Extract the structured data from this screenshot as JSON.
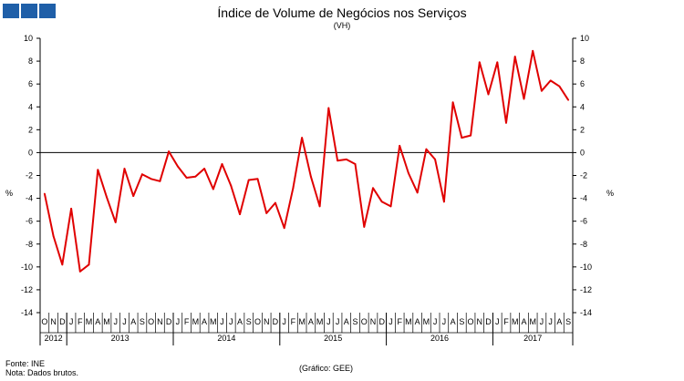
{
  "header": {
    "title": "Índice de Volume de Negócios nos Serviços",
    "subtitle": "(VH)"
  },
  "footer": {
    "source": "Fonte: INE",
    "note": "Nota: Dados brutos.",
    "credit": "(Gráfico: GEE)"
  },
  "colors": {
    "line": "#e00000",
    "axis": "#000000",
    "logo": "#1f5fa8"
  },
  "chart_data": {
    "type": "line",
    "title": "Índice de Volume de Negócios nos Serviços",
    "subtitle": "(VH)",
    "ylabel": "%",
    "y2label": "%",
    "ylim": [
      -14,
      10
    ],
    "yticks": [
      10,
      8,
      6,
      4,
      2,
      0,
      -2,
      -4,
      -6,
      -8,
      -10,
      -12,
      -14
    ],
    "month_labels": [
      "O",
      "N",
      "D",
      "J",
      "F",
      "M",
      "A",
      "M",
      "J",
      "J",
      "A",
      "S",
      "O",
      "N",
      "D",
      "J",
      "F",
      "M",
      "A",
      "M",
      "J",
      "J",
      "A",
      "S",
      "O",
      "N",
      "D",
      "J",
      "F",
      "M",
      "A",
      "M",
      "J",
      "J",
      "A",
      "S",
      "O",
      "N",
      "D",
      "J",
      "F",
      "M",
      "A",
      "M",
      "J",
      "J",
      "A",
      "S",
      "O",
      "N",
      "D",
      "J",
      "F",
      "M",
      "A",
      "M",
      "J",
      "J",
      "A",
      "S"
    ],
    "year_labels": [
      {
        "label": "2012",
        "start": 0,
        "end": 2
      },
      {
        "label": "2013",
        "start": 3,
        "end": 14
      },
      {
        "label": "2014",
        "start": 15,
        "end": 26
      },
      {
        "label": "2015",
        "start": 27,
        "end": 38
      },
      {
        "label": "2016",
        "start": 39,
        "end": 50
      },
      {
        "label": "2017",
        "start": 51,
        "end": 59
      }
    ],
    "series": [
      {
        "name": "Índice de Volume de Negócios nos Serviços (VH)",
        "values": [
          -3.6,
          -7.3,
          -9.8,
          -4.9,
          -10.4,
          -9.8,
          -1.5,
          -3.9,
          -6.1,
          -1.4,
          -3.8,
          -1.9,
          -2.3,
          -2.5,
          0.1,
          -1.2,
          -2.2,
          -2.1,
          -1.4,
          -3.2,
          -1.0,
          -2.9,
          -5.4,
          -2.4,
          -2.3,
          -5.3,
          -4.4,
          -6.6,
          -3.1,
          1.3,
          -2.1,
          -4.7,
          3.9,
          -0.7,
          -0.6,
          -1.0,
          -6.5,
          -3.1,
          -4.3,
          -4.7,
          0.6,
          -1.8,
          -3.5,
          0.3,
          -0.6,
          -4.3,
          4.4,
          1.3,
          1.5,
          7.9,
          5.1,
          7.9,
          2.6,
          8.4,
          4.7,
          8.9,
          5.4,
          6.3,
          5.8,
          4.6
        ]
      }
    ]
  }
}
